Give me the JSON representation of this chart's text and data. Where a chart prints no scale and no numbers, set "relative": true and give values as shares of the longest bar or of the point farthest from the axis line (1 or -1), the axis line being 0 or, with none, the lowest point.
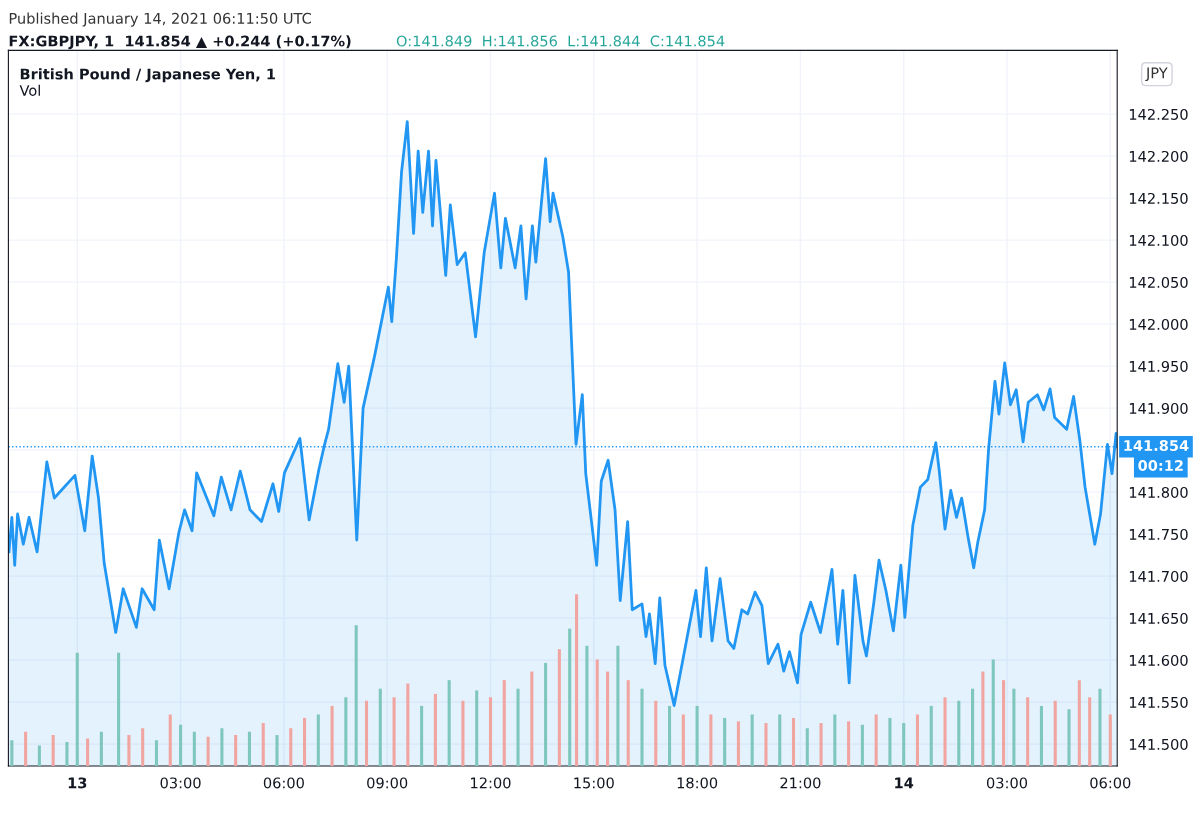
{
  "chart_data": [
    {
      "type": "area",
      "title": "British Pound / Japanese Yen, 1",
      "annotations": [
        "Published January 14, 2021 06:11:50 UTC",
        "FX:GBPJPY, 1  141.854 ▲ +0.244 (+0.17%)",
        "O:141.849  H:141.856  L:141.844  C:141.854",
        "JPY",
        "00:12"
      ],
      "series": [
        {
          "color": "#2196f3",
          "x": [
            "2021-01-12T22:01",
            "2021-01-12T22:06",
            "2021-01-12T22:11",
            "2021-01-12T22:16",
            "2021-01-12T22:26",
            "2021-01-12T22:36",
            "2021-01-12T22:50",
            "2021-01-12T23:07",
            "2021-01-12T23:20",
            "2021-01-12T23:56",
            "2021-01-13T00:13",
            "2021-01-13T00:26",
            "2021-01-13T00:37",
            "2021-01-13T00:47",
            "2021-01-13T01:07",
            "2021-01-13T01:20",
            "2021-01-13T01:43",
            "2021-01-13T01:53",
            "2021-01-13T02:14",
            "2021-01-13T02:23",
            "2021-01-13T02:40",
            "2021-01-13T02:57",
            "2021-01-13T03:07",
            "2021-01-13T03:20",
            "2021-01-13T03:28",
            "2021-01-13T03:58",
            "2021-01-13T04:11",
            "2021-01-13T04:28",
            "2021-01-13T04:44",
            "2021-01-13T05:01",
            "2021-01-13T05:21",
            "2021-01-13T05:41",
            "2021-01-13T05:51",
            "2021-01-13T06:01",
            "2021-01-13T06:28",
            "2021-01-13T06:44",
            "2021-01-13T07:01",
            "2021-01-13T07:11",
            "2021-01-13T07:18",
            "2021-01-13T07:34",
            "2021-01-13T07:45",
            "2021-01-13T07:53",
            "2021-01-13T08:07",
            "2021-01-13T08:18",
            "2021-01-13T08:38",
            "2021-01-13T09:02",
            "2021-01-13T09:08",
            "2021-01-13T09:16",
            "2021-01-13T09:25",
            "2021-01-13T09:35",
            "2021-01-13T09:46",
            "2021-01-13T09:54",
            "2021-01-13T10:02",
            "2021-01-13T10:12",
            "2021-01-13T10:19",
            "2021-01-13T10:25",
            "2021-01-13T10:42",
            "2021-01-13T10:50",
            "2021-01-13T11:02",
            "2021-01-13T11:16",
            "2021-01-13T11:34",
            "2021-01-13T11:49",
            "2021-01-13T12:07",
            "2021-01-13T12:18",
            "2021-01-13T12:26",
            "2021-01-13T12:43",
            "2021-01-13T12:53",
            "2021-01-13T13:02",
            "2021-01-13T13:13",
            "2021-01-13T13:19",
            "2021-01-13T13:36",
            "2021-01-13T13:44",
            "2021-01-13T13:49",
            "2021-01-13T14:06",
            "2021-01-13T14:16",
            "2021-01-13T14:29",
            "2021-01-13T14:40",
            "2021-01-13T14:46",
            "2021-01-13T14:56",
            "2021-01-13T15:05",
            "2021-01-13T15:13",
            "2021-01-13T15:25",
            "2021-01-13T15:37",
            "2021-01-13T15:46",
            "2021-01-13T15:59",
            "2021-01-13T16:07",
            "2021-01-13T16:24",
            "2021-01-13T16:31",
            "2021-01-13T16:37",
            "2021-01-13T16:47",
            "2021-01-13T16:55",
            "2021-01-13T17:04",
            "2021-01-13T17:20",
            "2021-01-13T17:34",
            "2021-01-13T17:58",
            "2021-01-13T18:06",
            "2021-01-13T18:16",
            "2021-01-13T18:26",
            "2021-01-13T18:40",
            "2021-01-13T18:54",
            "2021-01-13T19:04",
            "2021-01-13T19:18",
            "2021-01-13T19:28",
            "2021-01-13T19:41",
            "2021-01-13T19:53",
            "2021-01-13T20:04",
            "2021-01-13T20:21",
            "2021-01-13T20:31",
            "2021-01-13T20:41",
            "2021-01-13T20:55",
            "2021-01-13T21:01",
            "2021-01-13T21:18",
            "2021-01-13T21:35",
            "2021-01-13T21:55",
            "2021-01-13T22:05",
            "2021-01-13T22:14",
            "2021-01-13T22:25",
            "2021-01-13T22:35",
            "2021-01-13T22:49",
            "2021-01-13T22:55",
            "2021-01-13T23:08",
            "2021-01-13T23:17",
            "2021-01-13T23:29",
            "2021-01-13T23:42",
            "2021-01-13T23:55",
            "2021-01-14T00:02",
            "2021-01-14T00:16",
            "2021-01-14T00:29",
            "2021-01-14T00:42",
            "2021-01-14T00:56",
            "2021-01-14T01:02",
            "2021-01-14T01:12",
            "2021-01-14T01:22",
            "2021-01-14T01:32",
            "2021-01-14T01:41",
            "2021-01-14T01:52",
            "2021-01-14T02:02",
            "2021-01-14T02:09",
            "2021-01-14T02:21",
            "2021-01-14T02:28",
            "2021-01-14T02:39",
            "2021-01-14T02:46",
            "2021-01-14T02:56",
            "2021-01-14T03:06",
            "2021-01-14T03:16",
            "2021-01-14T03:28",
            "2021-01-14T03:37",
            "2021-01-14T03:53",
            "2021-01-14T04:04",
            "2021-01-14T04:15",
            "2021-01-14T04:23",
            "2021-01-14T04:44",
            "2021-01-14T04:56",
            "2021-01-14T05:07",
            "2021-01-14T05:16",
            "2021-01-14T05:33",
            "2021-01-14T05:43",
            "2021-01-14T05:55",
            "2021-01-14T06:03",
            "2021-01-14T06:10",
            "2021-01-14T06:11"
          ],
          "values": [
            141.729,
            141.77,
            141.713,
            141.774,
            141.738,
            141.77,
            141.729,
            141.836,
            141.793,
            141.82,
            141.754,
            141.843,
            141.793,
            141.715,
            141.633,
            141.685,
            141.639,
            141.685,
            141.66,
            141.743,
            141.685,
            141.752,
            141.779,
            141.754,
            141.823,
            141.772,
            141.818,
            141.779,
            141.825,
            141.779,
            141.765,
            141.81,
            141.777,
            141.823,
            141.864,
            141.767,
            141.827,
            141.857,
            141.875,
            141.953,
            141.907,
            141.95,
            141.743,
            141.9,
            141.962,
            142.044,
            142.003,
            142.078,
            142.181,
            142.241,
            142.108,
            142.206,
            142.133,
            142.206,
            142.117,
            142.195,
            142.058,
            142.142,
            142.071,
            142.085,
            141.985,
            142.085,
            142.156,
            142.067,
            142.126,
            142.067,
            142.117,
            142.03,
            142.117,
            142.074,
            142.197,
            142.122,
            142.156,
            142.104,
            142.062,
            141.857,
            141.916,
            141.822,
            141.765,
            141.713,
            141.813,
            141.838,
            141.779,
            141.671,
            141.765,
            141.66,
            141.667,
            141.628,
            141.655,
            141.596,
            141.674,
            141.594,
            141.546,
            141.596,
            141.683,
            141.628,
            141.71,
            141.623,
            141.697,
            141.623,
            141.614,
            141.66,
            141.655,
            141.681,
            141.665,
            141.596,
            141.619,
            141.587,
            141.61,
            141.573,
            141.63,
            141.669,
            141.633,
            141.708,
            141.619,
            141.683,
            141.573,
            141.701,
            141.623,
            141.605,
            141.669,
            141.719,
            141.683,
            141.635,
            141.713,
            141.651,
            141.761,
            141.806,
            141.815,
            141.859,
            141.825,
            141.756,
            141.802,
            141.77,
            141.793,
            141.747,
            141.71,
            141.74,
            141.779,
            141.852,
            141.932,
            141.893,
            141.954,
            141.904,
            141.922,
            141.86,
            141.907,
            141.916,
            141.898,
            141.923,
            141.889,
            141.875,
            141.914,
            141.861,
            141.806,
            141.738,
            141.774,
            141.857,
            141.822,
            141.87,
            141.854
          ]
        }
      ],
      "xlim": [
        "2021-01-12T22:00",
        "2021-01-14T06:12"
      ],
      "xticks": [
        {
          "value": "2021-01-13T00:00",
          "label": "13"
        },
        {
          "value": "2021-01-13T03:00",
          "label": "03:00"
        },
        {
          "value": "2021-01-13T06:00",
          "label": "06:00"
        },
        {
          "value": "2021-01-13T09:00",
          "label": "09:00"
        },
        {
          "value": "2021-01-13T12:00",
          "label": "12:00"
        },
        {
          "value": "2021-01-13T15:00",
          "label": "15:00"
        },
        {
          "value": "2021-01-13T18:00",
          "label": "18:00"
        },
        {
          "value": "2021-01-13T21:00",
          "label": "21:00"
        },
        {
          "value": "2021-01-14T00:00",
          "label": "14"
        },
        {
          "value": "2021-01-14T03:00",
          "label": "03:00"
        },
        {
          "value": "2021-01-14T06:00",
          "label": "06:00"
        }
      ],
      "ylim": [
        141.474,
        142.326
      ],
      "yticks": [
        {
          "value": 141.5,
          "label": "141.500"
        },
        {
          "value": 141.55,
          "label": "141.550"
        },
        {
          "value": 141.6,
          "label": "141.600"
        },
        {
          "value": 141.65,
          "label": "141.650"
        },
        {
          "value": 141.7,
          "label": "141.700"
        },
        {
          "value": 141.75,
          "label": "141.750"
        },
        {
          "value": 141.8,
          "label": "141.800"
        },
        {
          "value": 141.85,
          "label": null
        },
        {
          "value": 141.9,
          "label": "141.900"
        },
        {
          "value": 141.95,
          "label": "141.950"
        },
        {
          "value": 142.0,
          "label": "142.000"
        },
        {
          "value": 142.05,
          "label": "142.050"
        },
        {
          "value": 142.1,
          "label": "142.100"
        },
        {
          "value": 142.15,
          "label": "142.150"
        },
        {
          "value": 142.2,
          "label": "142.200"
        },
        {
          "value": 142.25,
          "label": "142.250"
        }
      ],
      "ref_lines": [
        {
          "axis": "y",
          "value": 141.854,
          "label": "141.854",
          "color": "#2196f3",
          "line_style": "dotted"
        }
      ],
      "grid": true,
      "legend": false
    },
    {
      "type": "bar",
      "title": "Vol",
      "relative": true,
      "tick_labels": false,
      "xlim": [
        "2021-01-12T22:00",
        "2021-01-14T06:12"
      ],
      "x": [
        "2021-01-12T22:06",
        "2021-01-12T22:30",
        "2021-01-12T22:54",
        "2021-01-12T23:18",
        "2021-01-12T23:42",
        "2021-01-13T00:00",
        "2021-01-13T00:18",
        "2021-01-13T00:42",
        "2021-01-13T01:12",
        "2021-01-13T01:30",
        "2021-01-13T01:54",
        "2021-01-13T02:18",
        "2021-01-13T02:42",
        "2021-01-13T03:00",
        "2021-01-13T03:24",
        "2021-01-13T03:48",
        "2021-01-13T04:12",
        "2021-01-13T04:36",
        "2021-01-13T05:00",
        "2021-01-13T05:24",
        "2021-01-13T05:48",
        "2021-01-13T06:12",
        "2021-01-13T06:36",
        "2021-01-13T07:00",
        "2021-01-13T07:24",
        "2021-01-13T07:48",
        "2021-01-13T08:06",
        "2021-01-13T08:24",
        "2021-01-13T08:48",
        "2021-01-13T09:12",
        "2021-01-13T09:36",
        "2021-01-13T10:00",
        "2021-01-13T10:24",
        "2021-01-13T10:48",
        "2021-01-13T11:12",
        "2021-01-13T11:36",
        "2021-01-13T12:00",
        "2021-01-13T12:24",
        "2021-01-13T12:48",
        "2021-01-13T13:12",
        "2021-01-13T13:36",
        "2021-01-13T14:00",
        "2021-01-13T14:18",
        "2021-01-13T14:30",
        "2021-01-13T14:48",
        "2021-01-13T15:06",
        "2021-01-13T15:24",
        "2021-01-13T15:42",
        "2021-01-13T16:00",
        "2021-01-13T16:24",
        "2021-01-13T16:48",
        "2021-01-13T17:12",
        "2021-01-13T17:36",
        "2021-01-13T18:00",
        "2021-01-13T18:24",
        "2021-01-13T18:48",
        "2021-01-13T19:12",
        "2021-01-13T19:36",
        "2021-01-13T20:00",
        "2021-01-13T20:24",
        "2021-01-13T20:48",
        "2021-01-13T21:12",
        "2021-01-13T21:36",
        "2021-01-13T22:00",
        "2021-01-13T22:24",
        "2021-01-13T22:48",
        "2021-01-13T23:12",
        "2021-01-13T23:36",
        "2021-01-14T00:00",
        "2021-01-14T00:24",
        "2021-01-14T00:48",
        "2021-01-14T01:12",
        "2021-01-14T01:36",
        "2021-01-14T02:00",
        "2021-01-14T02:18",
        "2021-01-14T02:36",
        "2021-01-14T02:54",
        "2021-01-14T03:12",
        "2021-01-14T03:36",
        "2021-01-14T04:00",
        "2021-01-14T04:24",
        "2021-01-14T04:48",
        "2021-01-14T05:06",
        "2021-01-14T05:24",
        "2021-01-14T05:42",
        "2021-01-14T06:00"
      ],
      "values": [
        0.15,
        0.2,
        0.12,
        0.18,
        0.14,
        0.66,
        0.16,
        0.2,
        0.66,
        0.18,
        0.22,
        0.15,
        0.3,
        0.24,
        0.2,
        0.17,
        0.22,
        0.18,
        0.2,
        0.25,
        0.18,
        0.22,
        0.28,
        0.3,
        0.35,
        0.4,
        0.82,
        0.38,
        0.45,
        0.4,
        0.48,
        0.35,
        0.42,
        0.5,
        0.38,
        0.44,
        0.4,
        0.5,
        0.45,
        0.55,
        0.6,
        0.68,
        0.8,
        1.0,
        0.7,
        0.62,
        0.55,
        0.7,
        0.5,
        0.45,
        0.38,
        0.35,
        0.3,
        0.35,
        0.3,
        0.28,
        0.26,
        0.3,
        0.25,
        0.3,
        0.28,
        0.22,
        0.25,
        0.3,
        0.26,
        0.24,
        0.3,
        0.28,
        0.25,
        0.3,
        0.35,
        0.4,
        0.38,
        0.45,
        0.55,
        0.62,
        0.5,
        0.45,
        0.4,
        0.35,
        0.38,
        0.33,
        0.5,
        0.4,
        0.45,
        0.3
      ],
      "colors": [
        "#7fc7bd",
        "#f1a5a0",
        "#7fc7bd",
        "#f1a5a0",
        "#7fc7bd",
        "#7fc7bd",
        "#f1a5a0",
        "#7fc7bd",
        "#7fc7bd",
        "#f1a5a0",
        "#f1a5a0",
        "#7fc7bd",
        "#f1a5a0",
        "#7fc7bd",
        "#7fc7bd",
        "#f1a5a0",
        "#7fc7bd",
        "#f1a5a0",
        "#7fc7bd",
        "#f1a5a0",
        "#7fc7bd",
        "#f1a5a0",
        "#f1a5a0",
        "#7fc7bd",
        "#f1a5a0",
        "#7fc7bd",
        "#7fc7bd",
        "#f1a5a0",
        "#7fc7bd",
        "#f1a5a0",
        "#f1a5a0",
        "#7fc7bd",
        "#f1a5a0",
        "#7fc7bd",
        "#f1a5a0",
        "#7fc7bd",
        "#f1a5a0",
        "#f1a5a0",
        "#7fc7bd",
        "#f1a5a0",
        "#7fc7bd",
        "#f1a5a0",
        "#7fc7bd",
        "#f1a5a0",
        "#7fc7bd",
        "#f1a5a0",
        "#f1a5a0",
        "#7fc7bd",
        "#f1a5a0",
        "#7fc7bd",
        "#f1a5a0",
        "#7fc7bd",
        "#f1a5a0",
        "#7fc7bd",
        "#f1a5a0",
        "#7fc7bd",
        "#f1a5a0",
        "#7fc7bd",
        "#f1a5a0",
        "#7fc7bd",
        "#f1a5a0",
        "#7fc7bd",
        "#f1a5a0",
        "#7fc7bd",
        "#f1a5a0",
        "#7fc7bd",
        "#f1a5a0",
        "#7fc7bd",
        "#7fc7bd",
        "#f1a5a0",
        "#7fc7bd",
        "#f1a5a0",
        "#7fc7bd",
        "#7fc7bd",
        "#f1a5a0",
        "#7fc7bd",
        "#f1a5a0",
        "#7fc7bd",
        "#f1a5a0",
        "#7fc7bd",
        "#f1a5a0",
        "#7fc7bd",
        "#f1a5a0",
        "#f1a5a0",
        "#7fc7bd",
        "#f1a5a0"
      ]
    }
  ]
}
